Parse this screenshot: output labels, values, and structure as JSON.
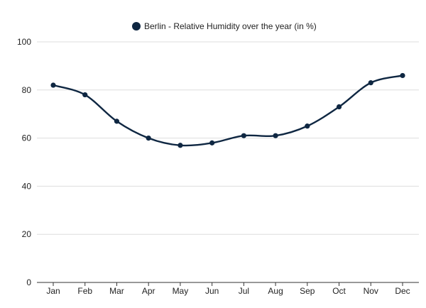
{
  "chart_data": {
    "type": "line",
    "title": "",
    "legend": [
      {
        "label": "Berlin - Relative Humidity over the year (in %)",
        "color": "#0f2742"
      }
    ],
    "categories": [
      "Jan",
      "Feb",
      "Mar",
      "Apr",
      "May",
      "Jun",
      "Jul",
      "Aug",
      "Sep",
      "Oct",
      "Nov",
      "Dec"
    ],
    "series": [
      {
        "name": "Berlin - Relative Humidity over the year (in %)",
        "values": [
          82,
          78,
          67,
          60,
          57,
          58,
          61,
          61,
          65,
          73,
          83,
          86
        ]
      }
    ],
    "y_ticks": [
      "0",
      "20",
      "40",
      "60",
      "80",
      "100"
    ],
    "ylim": [
      0,
      100
    ],
    "xlabel": "",
    "ylabel": "",
    "grid": true,
    "legend_position": "top-center",
    "colors": {
      "series": "#0f2742",
      "grid": "#dddddd",
      "axis": "#333333",
      "text": "#222222"
    }
  }
}
